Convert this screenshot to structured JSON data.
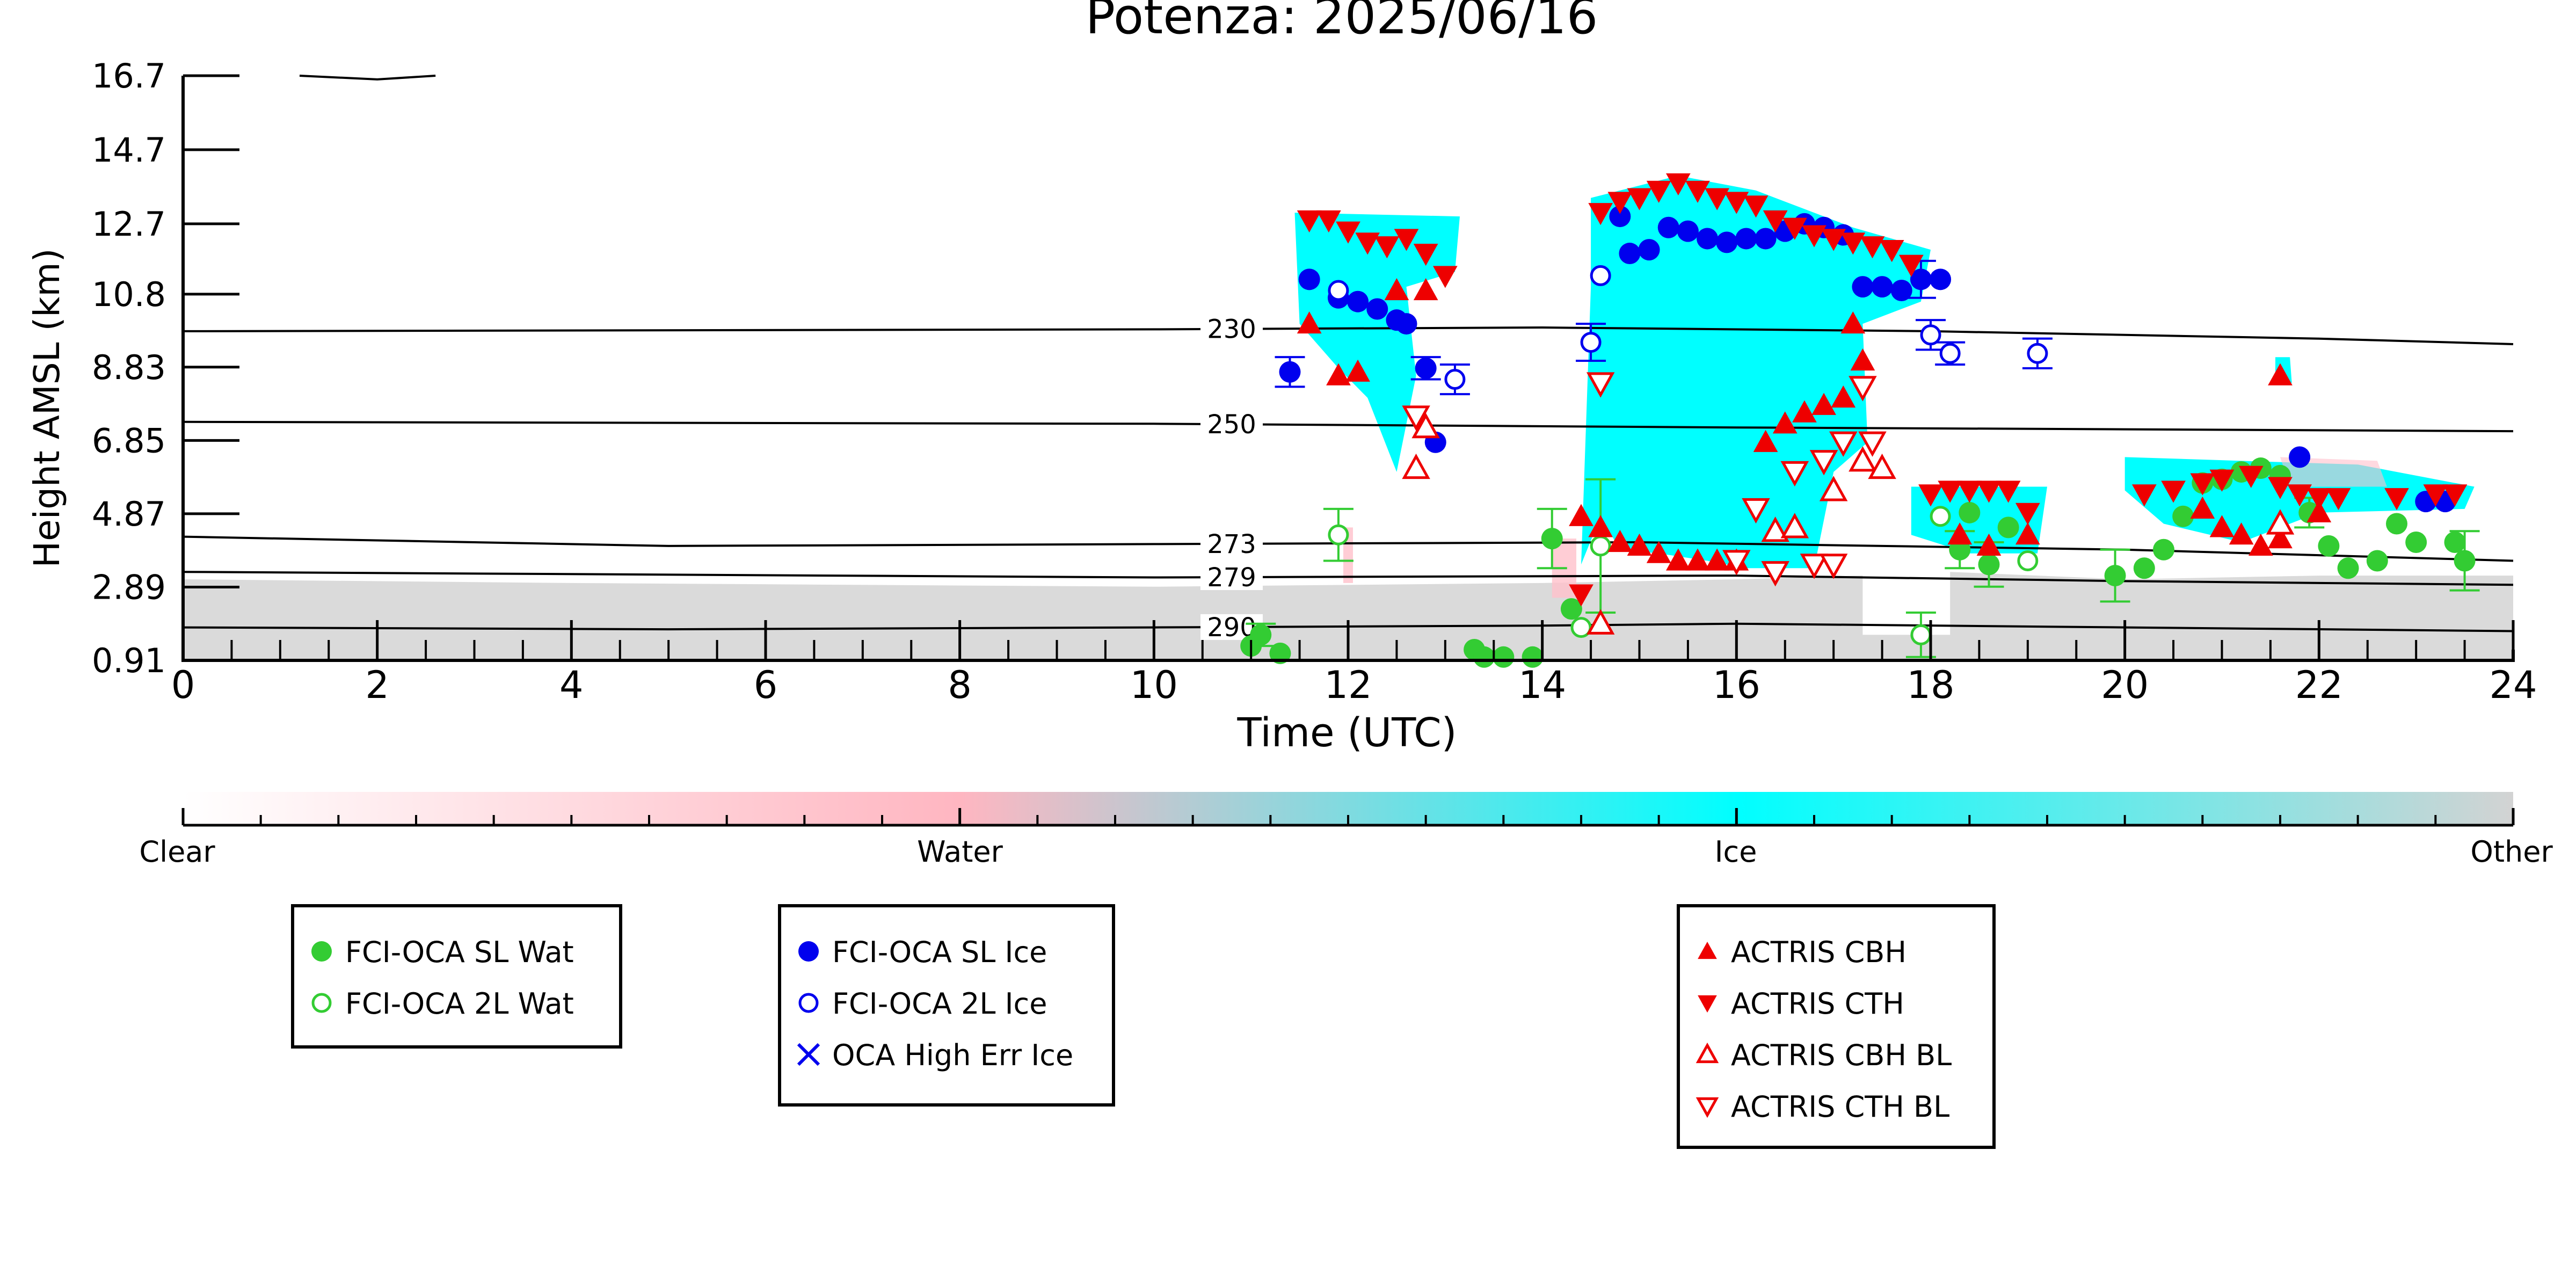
{
  "chart_data": {
    "type": "scatter",
    "title": "Potenza: 2025/06/16",
    "xlabel": "Time (UTC)",
    "ylabel": "Height AMSL (km)",
    "xlim": [
      0,
      24
    ],
    "ylim": [
      0.91,
      16.7
    ],
    "x_ticks": [
      "0",
      "2",
      "4",
      "6",
      "8",
      "10",
      "12",
      "14",
      "16",
      "18",
      "20",
      "22",
      "24"
    ],
    "y_ticks": [
      "0.91",
      "2.89",
      "4.87",
      "6.85",
      "8.83",
      "10.8",
      "12.7",
      "14.7",
      "16.7"
    ],
    "grid": false,
    "colorbar": {
      "labels": [
        "Clear",
        "Water",
        "Ice",
        "Other"
      ],
      "colors": [
        "#ffffff",
        "#ffb6c1",
        "#00ffff",
        "#d3d3d3"
      ]
    },
    "isotherms": [
      {
        "label": "230",
        "points": [
          [
            0,
            9.8
          ],
          [
            10,
            9.85
          ],
          [
            14,
            9.9
          ],
          [
            18,
            9.8
          ],
          [
            22,
            9.6
          ],
          [
            24,
            9.45
          ]
        ]
      },
      {
        "label": "250",
        "points": [
          [
            0,
            7.35
          ],
          [
            10,
            7.3
          ],
          [
            16,
            7.2
          ],
          [
            20,
            7.15
          ],
          [
            24,
            7.1
          ]
        ]
      },
      {
        "label": "273",
        "points": [
          [
            0,
            4.25
          ],
          [
            5,
            4.0
          ],
          [
            10,
            4.05
          ],
          [
            15,
            4.1
          ],
          [
            20,
            3.9
          ],
          [
            24,
            3.6
          ]
        ]
      },
      {
        "label": "279",
        "points": [
          [
            0,
            3.3
          ],
          [
            10,
            3.15
          ],
          [
            16,
            3.2
          ],
          [
            20,
            3.05
          ],
          [
            24,
            2.95
          ]
        ]
      },
      {
        "label": "290",
        "points": [
          [
            0,
            1.8
          ],
          [
            5,
            1.75
          ],
          [
            10,
            1.8
          ],
          [
            14,
            1.85
          ],
          [
            16,
            1.9
          ],
          [
            20,
            1.8
          ],
          [
            24,
            1.7
          ]
        ]
      }
    ],
    "tropopause_segment": [
      [
        1.2,
        16.7
      ],
      [
        2.0,
        16.6
      ],
      [
        2.6,
        16.7
      ]
    ],
    "series": [
      {
        "name": "FCI-OCA SL Wat",
        "color": "#33cc33",
        "marker": "circle-filled",
        "points": [
          [
            11.0,
            1.3
          ],
          [
            11.1,
            1.6
          ],
          [
            11.3,
            1.1
          ],
          [
            13.3,
            1.2
          ],
          [
            13.4,
            1.0
          ],
          [
            13.6,
            1.0
          ],
          [
            13.9,
            1.0
          ],
          [
            14.1,
            4.2
          ],
          [
            14.3,
            2.3
          ],
          [
            18.3,
            3.9
          ],
          [
            18.4,
            4.9
          ],
          [
            18.6,
            3.5
          ],
          [
            18.8,
            4.5
          ],
          [
            19.9,
            3.2
          ],
          [
            20.2,
            3.4
          ],
          [
            20.4,
            3.9
          ],
          [
            20.6,
            4.8
          ],
          [
            20.8,
            5.7
          ],
          [
            21.0,
            5.8
          ],
          [
            21.2,
            6.0
          ],
          [
            21.4,
            6.1
          ],
          [
            21.6,
            5.9
          ],
          [
            21.9,
            4.9
          ],
          [
            22.1,
            4.0
          ],
          [
            22.3,
            3.4
          ],
          [
            22.6,
            3.6
          ],
          [
            22.8,
            4.6
          ],
          [
            23.0,
            4.1
          ],
          [
            23.4,
            4.1
          ],
          [
            23.5,
            3.6
          ]
        ],
        "errors": [
          [
            11.1,
            1.6,
            0.3
          ],
          [
            14.1,
            4.2,
            0.8
          ],
          [
            18.3,
            3.9,
            0.5
          ],
          [
            18.6,
            3.5,
            0.6
          ],
          [
            19.9,
            3.2,
            0.7
          ],
          [
            21.9,
            4.9,
            0.4
          ],
          [
            23.5,
            3.6,
            0.8
          ]
        ]
      },
      {
        "name": "FCI-OCA 2L Wat",
        "color": "#33cc33",
        "marker": "circle-open",
        "points": [
          [
            11.9,
            4.3
          ],
          [
            14.4,
            1.8
          ],
          [
            14.6,
            4.0
          ],
          [
            17.9,
            1.6
          ],
          [
            18.1,
            4.8
          ],
          [
            19.0,
            3.6
          ]
        ],
        "errors": [
          [
            11.9,
            4.3,
            0.7
          ],
          [
            14.6,
            4.0,
            1.8
          ],
          [
            17.9,
            1.6,
            0.6
          ]
        ]
      },
      {
        "name": "FCI-OCA SL Ice",
        "color": "#0000ee",
        "marker": "circle-filled",
        "points": [
          [
            11.4,
            8.7
          ],
          [
            11.6,
            11.2
          ],
          [
            11.9,
            10.7
          ],
          [
            12.1,
            10.6
          ],
          [
            12.3,
            10.4
          ],
          [
            12.5,
            10.1
          ],
          [
            12.6,
            10.0
          ],
          [
            12.8,
            8.8
          ],
          [
            12.9,
            6.8
          ],
          [
            14.8,
            12.9
          ],
          [
            14.9,
            11.9
          ],
          [
            15.1,
            12.0
          ],
          [
            15.3,
            12.6
          ],
          [
            15.5,
            12.5
          ],
          [
            15.7,
            12.3
          ],
          [
            15.9,
            12.2
          ],
          [
            16.1,
            12.3
          ],
          [
            16.3,
            12.3
          ],
          [
            16.5,
            12.5
          ],
          [
            16.7,
            12.7
          ],
          [
            16.9,
            12.6
          ],
          [
            17.1,
            12.4
          ],
          [
            17.3,
            11.0
          ],
          [
            17.5,
            11.0
          ],
          [
            17.7,
            10.9
          ],
          [
            17.9,
            11.2
          ],
          [
            18.1,
            11.2
          ],
          [
            21.8,
            6.4
          ],
          [
            23.1,
            5.2
          ],
          [
            23.3,
            5.2
          ]
        ],
        "errors": [
          [
            11.4,
            8.7,
            0.4
          ],
          [
            12.8,
            8.8,
            0.3
          ],
          [
            17.9,
            11.2,
            0.5
          ]
        ]
      },
      {
        "name": "FCI-OCA 2L Ice",
        "color": "#0000ee",
        "marker": "circle-open",
        "points": [
          [
            11.9,
            10.9
          ],
          [
            13.1,
            8.5
          ],
          [
            14.5,
            9.5
          ],
          [
            14.6,
            11.3
          ],
          [
            18.0,
            9.7
          ],
          [
            18.2,
            9.2
          ],
          [
            19.1,
            9.2
          ]
        ],
        "errors": [
          [
            13.1,
            8.5,
            0.4
          ],
          [
            14.5,
            9.5,
            0.5
          ],
          [
            18.0,
            9.7,
            0.4
          ],
          [
            18.2,
            9.2,
            0.3
          ],
          [
            19.1,
            9.2,
            0.4
          ]
        ]
      },
      {
        "name": "OCA High Err Ice",
        "color": "#0000ee",
        "marker": "x",
        "points": []
      },
      {
        "name": "ACTRIS CBH",
        "color": "#ee0000",
        "marker": "triangle-up-filled",
        "points": [
          [
            11.6,
            10.0
          ],
          [
            11.9,
            8.6
          ],
          [
            12.1,
            8.7
          ],
          [
            12.5,
            10.9
          ],
          [
            12.8,
            10.9
          ],
          [
            14.4,
            4.8
          ],
          [
            14.6,
            4.5
          ],
          [
            14.8,
            4.1
          ],
          [
            15.0,
            4.0
          ],
          [
            15.2,
            3.8
          ],
          [
            15.4,
            3.6
          ],
          [
            15.6,
            3.6
          ],
          [
            15.8,
            3.6
          ],
          [
            16.0,
            3.6
          ],
          [
            16.3,
            6.8
          ],
          [
            16.5,
            7.3
          ],
          [
            16.7,
            7.6
          ],
          [
            16.9,
            7.8
          ],
          [
            17.1,
            8.0
          ],
          [
            17.3,
            9.0
          ],
          [
            17.2,
            10.0
          ],
          [
            18.3,
            4.3
          ],
          [
            18.6,
            4.0
          ],
          [
            19.0,
            4.3
          ],
          [
            20.8,
            5.0
          ],
          [
            21.0,
            4.5
          ],
          [
            21.2,
            4.3
          ],
          [
            21.4,
            4.0
          ],
          [
            21.6,
            4.2
          ],
          [
            21.6,
            8.6
          ],
          [
            22.0,
            4.9
          ]
        ]
      },
      {
        "name": "ACTRIS CTH",
        "color": "#ee0000",
        "marker": "triangle-down-filled",
        "points": [
          [
            11.6,
            12.8
          ],
          [
            11.8,
            12.8
          ],
          [
            12.0,
            12.5
          ],
          [
            12.2,
            12.2
          ],
          [
            12.4,
            12.1
          ],
          [
            12.6,
            12.3
          ],
          [
            12.8,
            11.9
          ],
          [
            13.0,
            11.3
          ],
          [
            14.4,
            2.7
          ],
          [
            14.6,
            13.0
          ],
          [
            14.8,
            13.3
          ],
          [
            15.0,
            13.4
          ],
          [
            15.2,
            13.6
          ],
          [
            15.4,
            13.8
          ],
          [
            15.6,
            13.6
          ],
          [
            15.8,
            13.4
          ],
          [
            16.0,
            13.3
          ],
          [
            16.2,
            13.2
          ],
          [
            16.4,
            12.8
          ],
          [
            16.6,
            12.6
          ],
          [
            16.8,
            12.4
          ],
          [
            17.0,
            12.3
          ],
          [
            17.2,
            12.2
          ],
          [
            17.4,
            12.1
          ],
          [
            17.6,
            12.0
          ],
          [
            17.8,
            11.6
          ],
          [
            18.0,
            5.4
          ],
          [
            18.2,
            5.5
          ],
          [
            18.4,
            5.5
          ],
          [
            18.6,
            5.5
          ],
          [
            18.8,
            5.5
          ],
          [
            19.0,
            4.9
          ],
          [
            20.2,
            5.4
          ],
          [
            20.5,
            5.5
          ],
          [
            20.8,
            5.7
          ],
          [
            21.0,
            5.8
          ],
          [
            21.3,
            5.9
          ],
          [
            21.6,
            5.6
          ],
          [
            21.8,
            5.4
          ],
          [
            22.0,
            5.3
          ],
          [
            22.2,
            5.3
          ],
          [
            22.8,
            5.3
          ],
          [
            23.2,
            5.4
          ],
          [
            23.4,
            5.4
          ]
        ]
      },
      {
        "name": "ACTRIS CBH BL",
        "color": "#ee0000",
        "marker": "triangle-up-open",
        "points": [
          [
            12.7,
            6.1
          ],
          [
            12.8,
            7.2
          ],
          [
            14.6,
            1.9
          ],
          [
            16.4,
            4.4
          ],
          [
            16.6,
            4.5
          ],
          [
            17.0,
            5.5
          ],
          [
            17.3,
            6.3
          ],
          [
            17.5,
            6.1
          ],
          [
            21.6,
            4.6
          ]
        ]
      },
      {
        "name": "ACTRIS CTH BL",
        "color": "#ee0000",
        "marker": "triangle-down-open",
        "points": [
          [
            12.7,
            7.5
          ],
          [
            14.6,
            8.4
          ],
          [
            16.0,
            3.6
          ],
          [
            16.2,
            5.0
          ],
          [
            16.4,
            3.3
          ],
          [
            16.6,
            6.0
          ],
          [
            16.8,
            3.5
          ],
          [
            16.9,
            6.3
          ],
          [
            17.0,
            3.5
          ],
          [
            17.1,
            6.8
          ],
          [
            17.3,
            8.3
          ],
          [
            17.4,
            6.8
          ]
        ]
      }
    ]
  }
}
